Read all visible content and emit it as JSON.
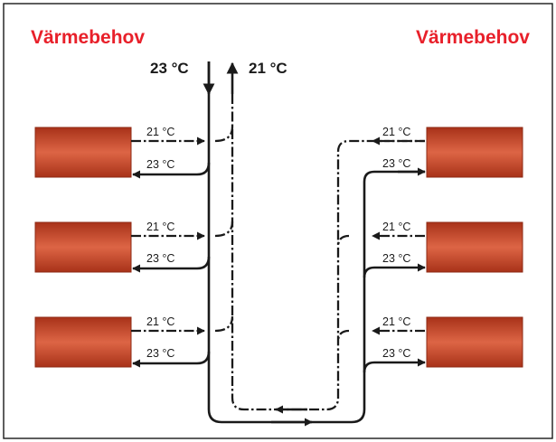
{
  "title_left": "Värmebehov",
  "title_right": "Värmebehov",
  "main_supply_temp": "23 °C",
  "main_return_temp": "21 °C",
  "colors": {
    "heading": "#e8202a",
    "radiator_edge": "#a23019",
    "radiator_mid": "#dd6545",
    "line": "#1a1a1a"
  },
  "left_radiators": [
    {
      "return_temp": "21 °C",
      "supply_temp": "23 °C"
    },
    {
      "return_temp": "21 °C",
      "supply_temp": "23 °C"
    },
    {
      "return_temp": "21 °C",
      "supply_temp": "23 °C"
    }
  ],
  "right_radiators": [
    {
      "return_temp": "21 °C",
      "supply_temp": "23 °C"
    },
    {
      "return_temp": "21 °C",
      "supply_temp": "23 °C"
    },
    {
      "return_temp": "21 °C",
      "supply_temp": "23 °C"
    }
  ]
}
